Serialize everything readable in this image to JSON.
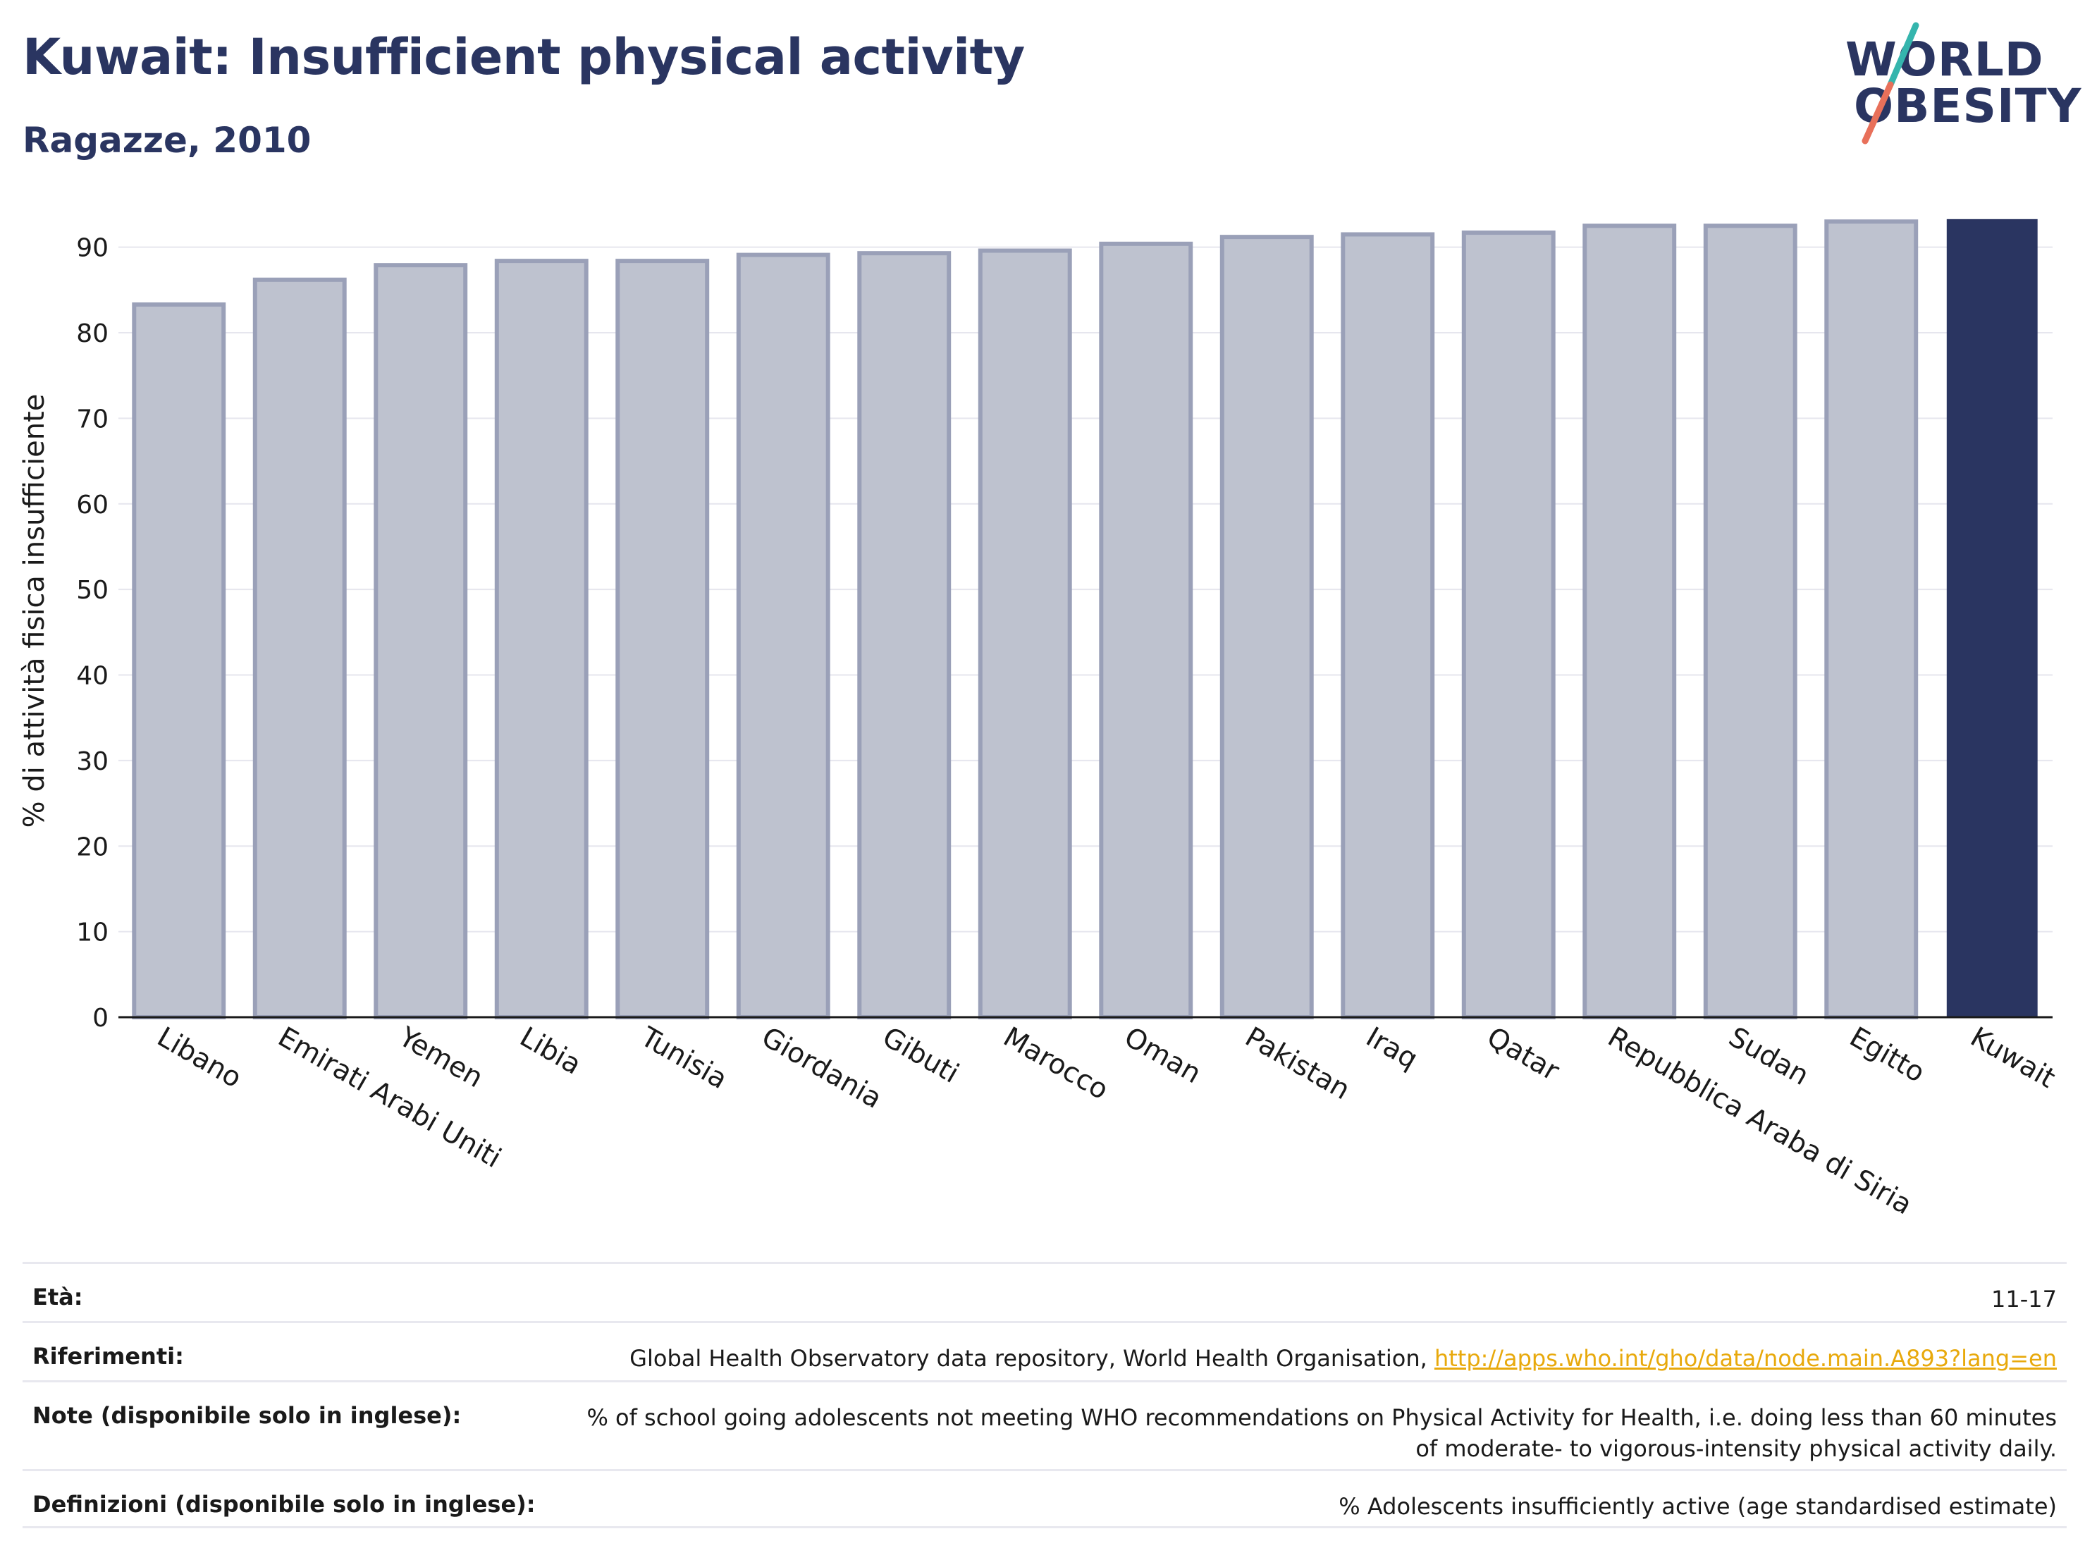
{
  "header": {
    "title": "Kuwait: Insufficient physical activity",
    "subtitle": "Ragazze, 2010"
  },
  "logo": {
    "line1": "WORLD",
    "line2": "OBESITY"
  },
  "colors": {
    "title": "#2a3561",
    "bar_default_fill": "#bec2cf",
    "bar_default_stroke": "#9aa0b8",
    "bar_highlight": "#2a3561",
    "grid": "#e6e6ee",
    "link": "#e8a90c"
  },
  "chart_data": {
    "type": "bar",
    "ylabel": "% di attività fisica insufficiente",
    "ylim": [
      0,
      95
    ],
    "yticks": [
      0,
      10,
      20,
      30,
      40,
      50,
      60,
      70,
      80,
      90
    ],
    "grid": true,
    "highlight": "Kuwait",
    "categories": [
      "Libano",
      "Emirati Arabi Uniti",
      "Yemen",
      "Libia",
      "Tunisia",
      "Giordania",
      "Gibuti",
      "Marocco",
      "Oman",
      "Pakistan",
      "Iraq",
      "Qatar",
      "Repubblica Araba di Siria",
      "Sudan",
      "Egitto",
      "Kuwait"
    ],
    "values": [
      83.3,
      86.2,
      87.9,
      88.4,
      88.4,
      89.1,
      89.3,
      89.6,
      90.4,
      91.2,
      91.5,
      91.7,
      92.5,
      92.5,
      93.0,
      93.2
    ]
  },
  "meta": [
    {
      "key": "Età:",
      "value": "11-17"
    },
    {
      "key": "Riferimenti:",
      "value": "Global Health Observatory data repository, World Health Organisation, ",
      "link": "http://apps.who.int/gho/data/node.main.A893?lang=en"
    },
    {
      "key": "Note (disponibile solo in inglese):",
      "value": "% of school going adolescents not meeting WHO recommendations on Physical Activity for Health, i.e. doing less than 60 minutes of moderate- to vigorous-intensity physical activity daily."
    },
    {
      "key": "Definizioni (disponibile solo in inglese):",
      "value": "% Adolescents insufficiently active (age standardised estimate)"
    }
  ]
}
